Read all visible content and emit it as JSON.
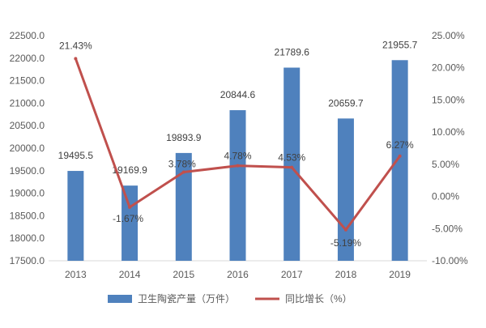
{
  "chart_data": {
    "type": "bar+line",
    "categories": [
      "2013",
      "2014",
      "2015",
      "2016",
      "2017",
      "2018",
      "2019"
    ],
    "series": [
      {
        "name": "卫生陶瓷产量（万件）",
        "type": "bar",
        "axis": "left",
        "values": [
          19495.5,
          19169.9,
          19893.9,
          20844.6,
          21789.6,
          20659.7,
          21955.7
        ],
        "labels": [
          "19495.5",
          "19169.9",
          "19893.9",
          "20844.6",
          "21789.6",
          "20659.7",
          "21955.7"
        ],
        "color": "#4f81bd"
      },
      {
        "name": "同比增长（%）",
        "type": "line",
        "axis": "right",
        "values": [
          21.43,
          -1.67,
          3.78,
          4.78,
          4.53,
          -5.19,
          6.27
        ],
        "labels": [
          "21.43%",
          "-1.67%",
          "3.78%",
          "4.78%",
          "4.53%",
          "-5.19%",
          "6.27%"
        ],
        "color": "#c0504d"
      }
    ],
    "y_left": {
      "min": 17500,
      "max": 22500,
      "ticks": [
        "17500.0",
        "18000.0",
        "18500.0",
        "19000.0",
        "19500.0",
        "20000.0",
        "20500.0",
        "21000.0",
        "21500.0",
        "22000.0",
        "22500.0"
      ]
    },
    "y_right": {
      "min": -10,
      "max": 25,
      "ticks": [
        "-10.00%",
        "-5.00%",
        "0.00%",
        "5.00%",
        "10.00%",
        "15.00%",
        "20.00%",
        "25.00%"
      ]
    },
    "grid": false,
    "legend_position": "bottom"
  }
}
